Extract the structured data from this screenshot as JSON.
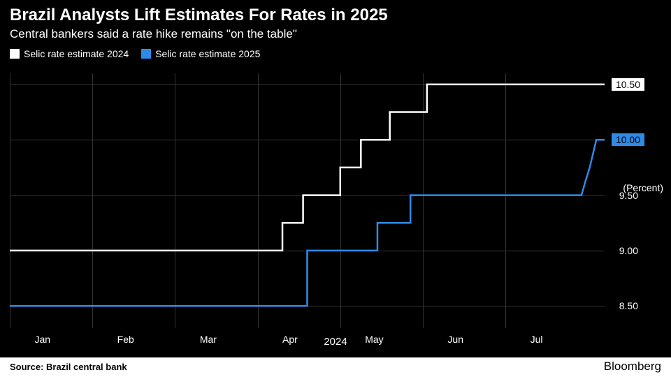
{
  "header": {
    "title": "Brazil Analysts Lift Estimates For Rates in 2025",
    "subtitle": "Central bankers said a rate hike remains \"on the table\""
  },
  "legend": {
    "items": [
      {
        "label": "Selic rate estimate 2024",
        "color": "#ffffff"
      },
      {
        "label": "Selic rate estimate 2025",
        "color": "#2e8ae6"
      }
    ]
  },
  "chart": {
    "type": "step-line",
    "background_color": "#000000",
    "grid_color": "#333333",
    "text_color": "#ffffff",
    "line_width": 2.5,
    "x": {
      "label": "2024",
      "months": [
        "Jan",
        "Feb",
        "Mar",
        "Apr",
        "May",
        "Jun",
        "Jul"
      ],
      "domain_min": 0.0,
      "domain_max": 7.2
    },
    "y": {
      "title": "(Percent)",
      "ticks": [
        8.5,
        9.0,
        9.5,
        10.0,
        10.5
      ],
      "min": 8.3,
      "max": 10.6
    },
    "series": [
      {
        "name": "Selic rate estimate 2024",
        "color": "#ffffff",
        "end_badge": "10.50",
        "points": [
          [
            0.0,
            9.0
          ],
          [
            3.3,
            9.0
          ],
          [
            3.3,
            9.25
          ],
          [
            3.55,
            9.25
          ],
          [
            3.55,
            9.5
          ],
          [
            4.0,
            9.5
          ],
          [
            4.0,
            9.75
          ],
          [
            4.25,
            9.75
          ],
          [
            4.25,
            10.0
          ],
          [
            4.6,
            10.0
          ],
          [
            4.6,
            10.25
          ],
          [
            5.05,
            10.25
          ],
          [
            5.05,
            10.5
          ],
          [
            7.2,
            10.5
          ]
        ]
      },
      {
        "name": "Selic rate estimate 2025",
        "color": "#2e8ae6",
        "end_badge": "10.00",
        "points": [
          [
            0.0,
            8.5
          ],
          [
            3.6,
            8.5
          ],
          [
            3.6,
            9.0
          ],
          [
            4.45,
            9.0
          ],
          [
            4.45,
            9.25
          ],
          [
            4.85,
            9.25
          ],
          [
            4.85,
            9.5
          ],
          [
            6.92,
            9.5
          ],
          [
            6.97,
            9.63
          ],
          [
            7.02,
            9.75
          ],
          [
            7.1,
            10.0
          ],
          [
            7.2,
            10.0
          ]
        ]
      }
    ]
  },
  "footer": {
    "source": "Source:  Brazil central bank",
    "brand": "Bloomberg"
  }
}
